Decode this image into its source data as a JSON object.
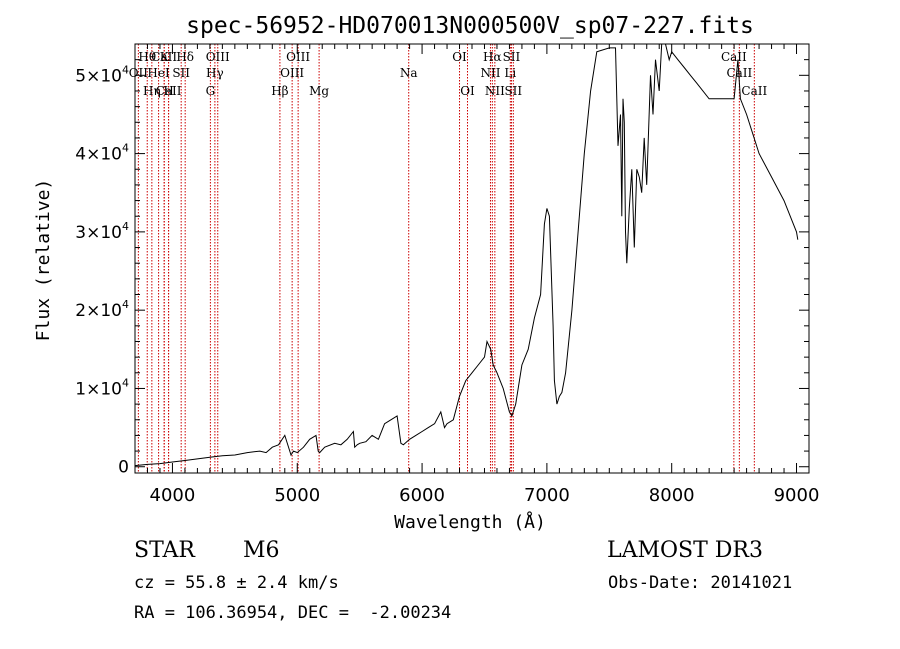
{
  "chart_data": {
    "type": "line",
    "title": "spec-56952-HD070013N000500V_sp07-227.fits",
    "xlabel": "Wavelength (Å)",
    "ylabel": "Flux (relative)",
    "xlim": [
      3700,
      9100
    ],
    "ylim": [
      -800,
      54000
    ],
    "grid": false,
    "xticks": [
      {
        "value": 4000,
        "label": "4000"
      },
      {
        "value": 5000,
        "label": "5000"
      },
      {
        "value": 6000,
        "label": "6000"
      },
      {
        "value": 7000,
        "label": "7000"
      },
      {
        "value": 8000,
        "label": "8000"
      },
      {
        "value": 9000,
        "label": "9000"
      }
    ],
    "yticks": [
      {
        "value": 0,
        "mant": "0",
        "exp": ""
      },
      {
        "value": 10000,
        "mant": "1×10",
        "exp": "4"
      },
      {
        "value": 20000,
        "mant": "2×10",
        "exp": "4"
      },
      {
        "value": 30000,
        "mant": "3×10",
        "exp": "4"
      },
      {
        "value": 40000,
        "mant": "4×10",
        "exp": "4"
      },
      {
        "value": 50000,
        "mant": "5×10",
        "exp": "4"
      }
    ],
    "series": [
      {
        "name": "flux",
        "x": [
          3700,
          3800,
          3900,
          4000,
          4100,
          4200,
          4300,
          4400,
          4500,
          4600,
          4700,
          4750,
          4800,
          4850,
          4900,
          4950,
          4970,
          5000,
          5050,
          5100,
          5150,
          5168,
          5180,
          5220,
          5300,
          5350,
          5400,
          5450,
          5460,
          5480,
          5500,
          5550,
          5600,
          5650,
          5700,
          5750,
          5800,
          5830,
          5850,
          5900,
          5950,
          6000,
          6050,
          6100,
          6150,
          6180,
          6200,
          6250,
          6300,
          6350,
          6400,
          6450,
          6500,
          6520,
          6550,
          6570,
          6600,
          6650,
          6700,
          6720,
          6750,
          6800,
          6850,
          6900,
          6950,
          6980,
          7000,
          7020,
          7050,
          7060,
          7080,
          7100,
          7120,
          7150,
          7200,
          7250,
          7300,
          7350,
          7400,
          7500,
          7550,
          7570,
          7590,
          7600,
          7610,
          7620,
          7630,
          7640,
          7660,
          7680,
          7700,
          7720,
          7740,
          7760,
          7780,
          7800,
          7830,
          7850,
          7870,
          7900,
          7920,
          7950,
          7980,
          8000,
          8050,
          8100,
          8150,
          8200,
          8300,
          8400,
          8500,
          8530,
          8550,
          8600,
          8700,
          8800,
          8900,
          9000,
          9010
        ],
        "y": [
          150,
          300,
          400,
          600,
          800,
          1000,
          1200,
          1400,
          1500,
          1800,
          2000,
          1800,
          2500,
          2800,
          4000,
          1500,
          2000,
          1800,
          2500,
          3500,
          4000,
          2000,
          1800,
          2500,
          3000,
          2800,
          3500,
          4500,
          2500,
          2800,
          3000,
          3200,
          4000,
          3500,
          5500,
          6000,
          6500,
          3000,
          2800,
          3500,
          4000,
          4500,
          5000,
          5500,
          7000,
          5000,
          5500,
          6000,
          9000,
          11000,
          12000,
          13000,
          14000,
          16000,
          15000,
          13000,
          12000,
          10000,
          7000,
          6500,
          8000,
          13000,
          15000,
          19000,
          22000,
          31000,
          33000,
          32000,
          18000,
          11000,
          8000,
          9000,
          9500,
          12000,
          20000,
          30000,
          40000,
          48000,
          53000,
          53500,
          53500,
          41000,
          45000,
          32000,
          47000,
          44000,
          30000,
          26000,
          33000,
          38000,
          28000,
          38000,
          37000,
          35000,
          42000,
          36000,
          50000,
          45000,
          52000,
          48000,
          54000,
          54000,
          52000,
          53000,
          52000,
          51000,
          50000,
          49000,
          47000,
          47000,
          47000,
          52000,
          47000,
          45000,
          40000,
          37000,
          34000,
          30000,
          29000
        ]
      }
    ],
    "lines": [
      {
        "name": "Hθ",
        "x": 3798,
        "row": 0
      },
      {
        "name": "OII",
        "x": 3727,
        "row": 1
      },
      {
        "name": "CaII",
        "x": 3934,
        "row": 0
      },
      {
        "name": "K",
        "x": 3934,
        "row": 0
      },
      {
        "name": "HeI",
        "x": 3889,
        "row": 1
      },
      {
        "name": "CaII",
        "x": 3969,
        "row": 2
      },
      {
        "name": "Hη",
        "x": 3835,
        "row": 2
      },
      {
        "name": "H",
        "x": 3969,
        "row": 2
      },
      {
        "name": "Hδ",
        "x": 4102,
        "row": 0
      },
      {
        "name": "SII",
        "x": 4070,
        "row": 1
      },
      {
        "name": "OIII",
        "x": 4363,
        "row": 0
      },
      {
        "name": "Hγ",
        "x": 4340,
        "row": 1
      },
      {
        "name": "G",
        "x": 4304,
        "row": 2
      },
      {
        "name": "OIII",
        "x": 5007,
        "row": 0
      },
      {
        "name": "OIII",
        "x": 4959,
        "row": 1
      },
      {
        "name": "Hβ",
        "x": 4861,
        "row": 2
      },
      {
        "name": "Mg",
        "x": 5175,
        "row": 2
      },
      {
        "name": "Na",
        "x": 5893,
        "row": 1
      },
      {
        "name": "OI",
        "x": 6300,
        "row": 0
      },
      {
        "name": "OI",
        "x": 6364,
        "row": 2
      },
      {
        "name": "Hα",
        "x": 6563,
        "row": 0
      },
      {
        "name": "SII",
        "x": 6716,
        "row": 0
      },
      {
        "name": "NII",
        "x": 6548,
        "row": 1
      },
      {
        "name": "Li",
        "x": 6707,
        "row": 1
      },
      {
        "name": "NII",
        "x": 6583,
        "row": 2
      },
      {
        "name": "SII",
        "x": 6731,
        "row": 2
      },
      {
        "name": "CaII",
        "x": 8498,
        "row": 0
      },
      {
        "name": "CaII",
        "x": 8542,
        "row": 1
      },
      {
        "name": "CaII",
        "x": 8662,
        "row": 2
      }
    ]
  },
  "info": {
    "object_class": "STAR",
    "subclass": "M6",
    "survey": "LAMOST DR3",
    "cz": "cz = 55.8 ± 2.4 km/s",
    "obs_date": "Obs-Date: 20141021",
    "radec": "RA = 106.36954, DEC =  -2.00234"
  },
  "colors": {
    "line_marker": "#cc0000",
    "spectrum": "#000000",
    "axes": "#000000"
  }
}
